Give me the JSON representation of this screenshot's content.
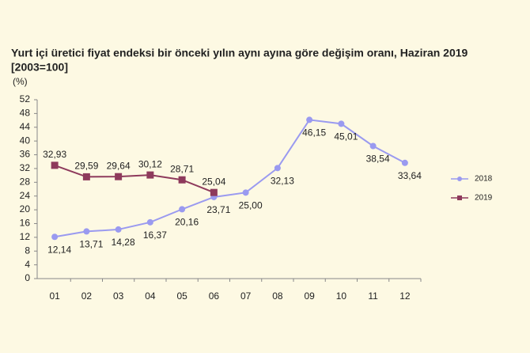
{
  "chart_data": {
    "type": "line",
    "title": "Yurt içi üretici fiyat endeksi bir önceki yılın aynı ayına göre değişim oranı, Haziran 2019",
    "subtitle": "[2003=100]",
    "y_label": "(%)",
    "categories": [
      "01",
      "02",
      "03",
      "04",
      "05",
      "06",
      "07",
      "08",
      "09",
      "10",
      "11",
      "12"
    ],
    "series": [
      {
        "name": "2018",
        "color": "#9a9af0",
        "marker": "circle",
        "values": [
          12.14,
          13.71,
          14.28,
          16.37,
          20.16,
          23.71,
          25.0,
          32.13,
          46.15,
          45.01,
          38.54,
          33.64
        ],
        "value_labels": [
          "12,14",
          "13,71",
          "14,28",
          "16,37",
          "20,16",
          "23,71",
          "25,00",
          "32,13",
          "46,15",
          "45,01",
          "38,54",
          "33,64"
        ]
      },
      {
        "name": "2019",
        "color": "#8e3a5c",
        "marker": "square",
        "values": [
          32.93,
          29.59,
          29.64,
          30.12,
          28.71,
          25.04,
          null,
          null,
          null,
          null,
          null,
          null
        ],
        "value_labels": [
          "32,93",
          "29,59",
          "29,64",
          "30,12",
          "28,71",
          "25,04",
          null,
          null,
          null,
          null,
          null,
          null
        ]
      }
    ],
    "ylim": [
      0,
      52
    ],
    "yticks": [
      0,
      4,
      8,
      12,
      16,
      20,
      24,
      28,
      32,
      36,
      40,
      44,
      48,
      52
    ],
    "grid": false,
    "legend": "right"
  }
}
